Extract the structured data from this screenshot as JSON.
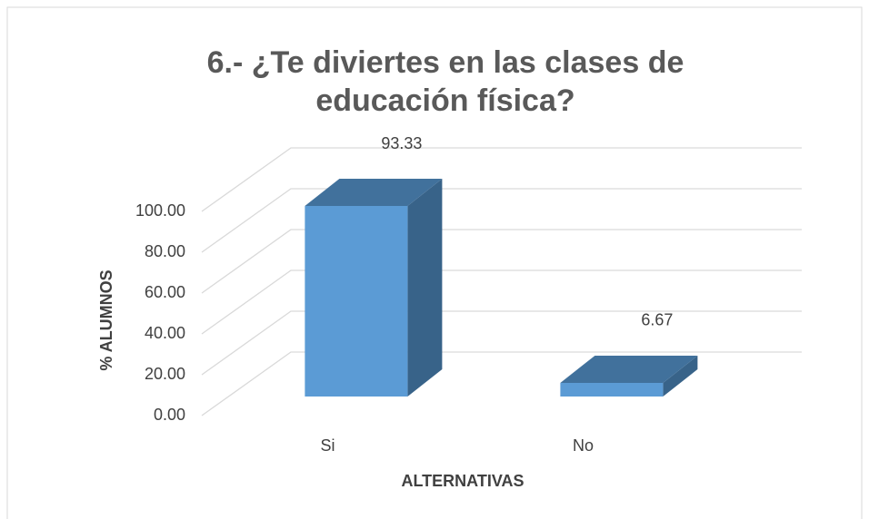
{
  "chart_data": {
    "type": "bar3d",
    "title": "6.- ¿Te diviertes en las clases de educación física?",
    "xlabel": "ALTERNATIVAS",
    "ylabel": "% ALUMNOS",
    "categories": [
      "Si",
      "No"
    ],
    "values": [
      93.33,
      6.67
    ],
    "color": "#5b9bd5",
    "ylim": [
      0,
      100
    ],
    "yticks": [
      {
        "value": 0,
        "label": "0.00"
      },
      {
        "value": 20,
        "label": "20.00"
      },
      {
        "value": 40,
        "label": "40.00"
      },
      {
        "value": 60,
        "label": "60.00"
      },
      {
        "value": 80,
        "label": "80.00"
      },
      {
        "value": 100,
        "label": "100.00"
      }
    ],
    "grid": true
  }
}
